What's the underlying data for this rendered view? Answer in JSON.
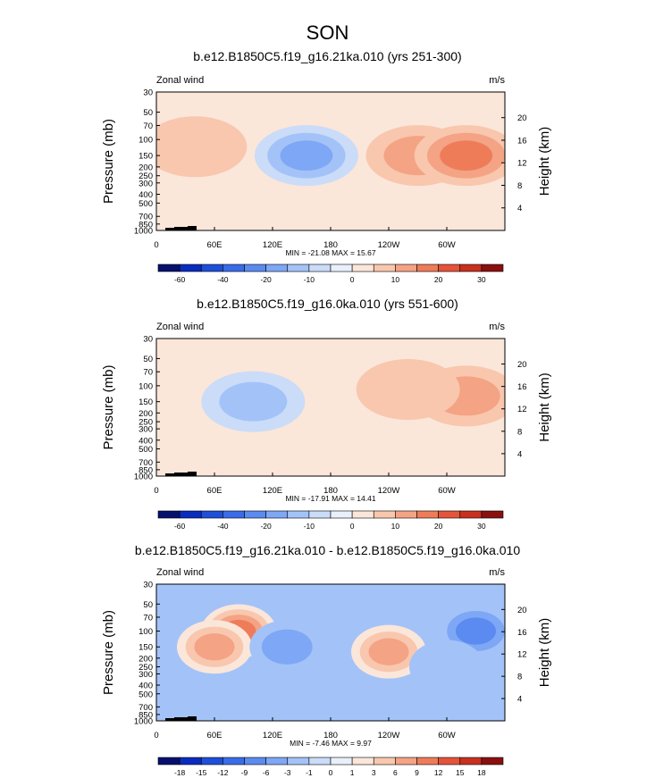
{
  "page_title": "SON",
  "chart_data": [
    {
      "type": "heatmap",
      "title": "b.e12.B1850C5.f19_g16.21ka.010 (yrs 251-300)",
      "left_label": "Zonal wind",
      "units": "m/s",
      "ylabel": "Pressure (mb)",
      "ylabel_right": "Height (km)",
      "y_ticks": [
        "30",
        "50",
        "70",
        "100",
        "150",
        "200",
        "250",
        "300",
        "400",
        "500",
        "700",
        "850",
        "1000"
      ],
      "y_ticks_right": [
        "20",
        "16",
        "12",
        "8",
        "4"
      ],
      "x_ticks": [
        "0",
        "60E",
        "120E",
        "180",
        "120W",
        "60W"
      ],
      "x_range": [
        0,
        360
      ],
      "stats": "MIN = -21.08  MAX =  15.67",
      "min": -21.08,
      "max": 15.67,
      "colorbar_ticks": [
        "-60",
        "-40",
        "-20",
        "-10",
        "0",
        "10",
        "20",
        "30"
      ],
      "colorbar_levels": [
        -70,
        -60,
        -50,
        -40,
        -30,
        -20,
        -15,
        -10,
        -5,
        0,
        5,
        10,
        15,
        20,
        25,
        30,
        35
      ],
      "features": [
        {
          "lon": 155,
          "pres": 150,
          "value": -15
        },
        {
          "lon": 270,
          "pres": 150,
          "value": 14
        },
        {
          "lon": 320,
          "pres": 150,
          "value": 15
        },
        {
          "lon": 40,
          "pres": 120,
          "value": 5
        }
      ]
    },
    {
      "type": "heatmap",
      "title": "b.e12.B1850C5.f19_g16.0ka.010 (yrs 551-600)",
      "left_label": "Zonal wind",
      "units": "m/s",
      "ylabel": "Pressure (mb)",
      "ylabel_right": "Height (km)",
      "y_ticks": [
        "30",
        "50",
        "70",
        "100",
        "150",
        "200",
        "250",
        "300",
        "400",
        "500",
        "700",
        "850",
        "1000"
      ],
      "y_ticks_right": [
        "20",
        "16",
        "12",
        "8",
        "4"
      ],
      "x_ticks": [
        "0",
        "60E",
        "120E",
        "180",
        "120W",
        "60W"
      ],
      "x_range": [
        0,
        360
      ],
      "stats": "MIN = -17.91  MAX =  14.41",
      "min": -17.91,
      "max": 14.41,
      "colorbar_ticks": [
        "-60",
        "-40",
        "-20",
        "-10",
        "0",
        "10",
        "20",
        "30"
      ],
      "colorbar_levels": [
        -70,
        -60,
        -50,
        -40,
        -30,
        -20,
        -15,
        -10,
        -5,
        0,
        5,
        10,
        15,
        20,
        25,
        30,
        35
      ],
      "features": [
        {
          "lon": 100,
          "pres": 150,
          "value": -12
        },
        {
          "lon": 320,
          "pres": 130,
          "value": 14
        },
        {
          "lon": 260,
          "pres": 110,
          "value": 9
        }
      ]
    },
    {
      "type": "heatmap",
      "title": "b.e12.B1850C5.f19_g16.21ka.010 - b.e12.B1850C5.f19_g16.0ka.010",
      "left_label": "Zonal wind",
      "units": "m/s",
      "ylabel": "Pressure (mb)",
      "ylabel_right": "Height (km)",
      "y_ticks": [
        "30",
        "50",
        "70",
        "100",
        "150",
        "200",
        "250",
        "300",
        "400",
        "500",
        "700",
        "850",
        "1000"
      ],
      "y_ticks_right": [
        "20",
        "16",
        "12",
        "8",
        "4"
      ],
      "x_ticks": [
        "0",
        "60E",
        "120E",
        "180",
        "120W",
        "60W"
      ],
      "x_range": [
        0,
        360
      ],
      "stats": "MIN = -7.46  MAX =  9.97",
      "min": -7.46,
      "max": 9.97,
      "colorbar_ticks": [
        "-18",
        "-15",
        "-12",
        "-9",
        "-6",
        "-3",
        "-1",
        "0",
        "1",
        "3",
        "6",
        "9",
        "12",
        "15",
        "18"
      ],
      "colorbar_levels": [
        -21,
        -18,
        -15,
        -12,
        -9,
        -6,
        -3,
        -1,
        0,
        1,
        3,
        6,
        9,
        12,
        15,
        18,
        21
      ],
      "features": [
        {
          "lon": 85,
          "pres": 100,
          "value": 9
        },
        {
          "lon": 60,
          "pres": 150,
          "value": 6
        },
        {
          "lon": 135,
          "pres": 150,
          "value": -5
        },
        {
          "lon": 240,
          "pres": 170,
          "value": 7
        },
        {
          "lon": 330,
          "pres": 100,
          "value": -6
        },
        {
          "lon": 300,
          "pres": 250,
          "value": -2
        }
      ]
    }
  ]
}
